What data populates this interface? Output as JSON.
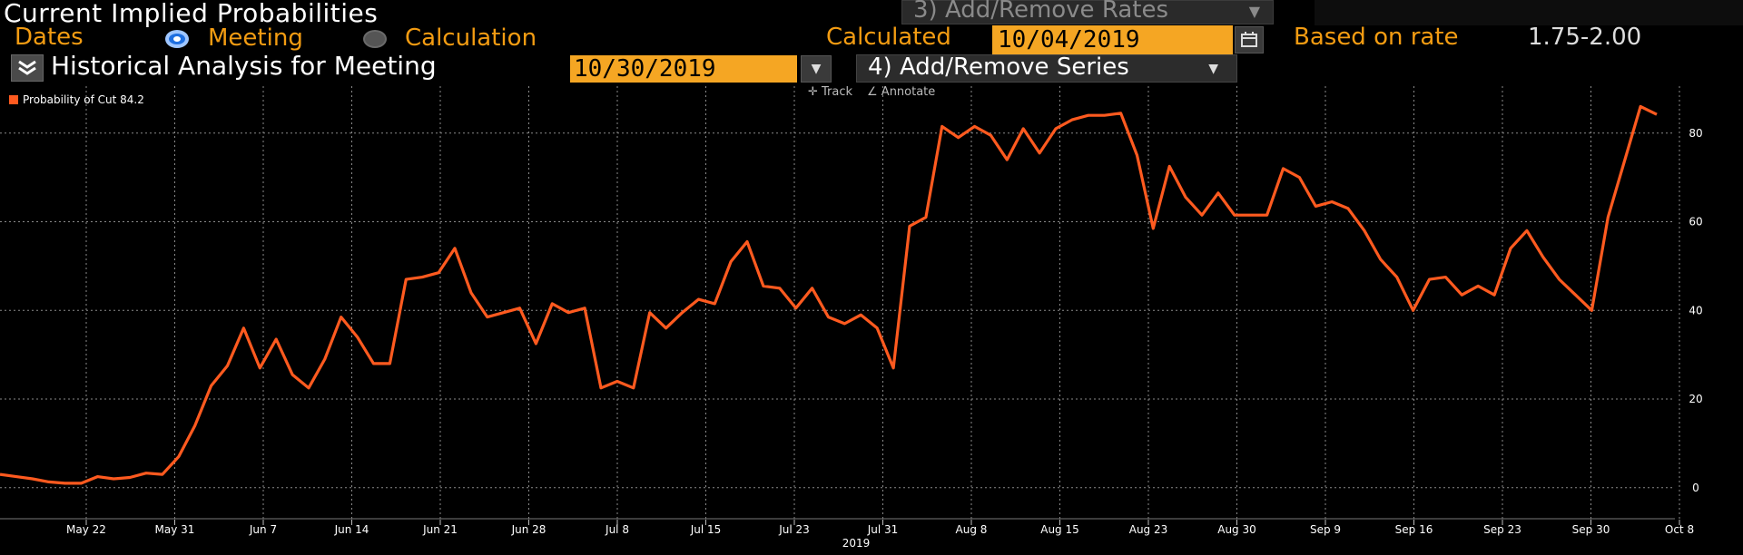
{
  "header": {
    "title": "Current Implied Probabilities",
    "rates_button": "3) Add/Remove Rates",
    "dates_label": "Dates",
    "meeting_label": "Meeting",
    "calculation_label": "Calculation",
    "calculated_label": "Calculated",
    "calculated_date": "10/04/2019",
    "based_on_label": "Based on rate",
    "rate_value": "1.75-2.00"
  },
  "subheader": {
    "historical_label": "Historical Analysis for Meeting",
    "meeting_date": "10/30/2019",
    "series_button": "4) Add/Remove Series"
  },
  "tools": {
    "track": "Track",
    "annotate": "Annotate"
  },
  "legend": {
    "label": "Probability of Cut 84.2"
  },
  "colors": {
    "accent_orange": "#f39c12",
    "line": "#ff5a1f",
    "background": "#000000"
  },
  "chart_data": {
    "type": "line",
    "series": [
      {
        "name": "Probability of Cut",
        "values": [
          3,
          2.5,
          2,
          1.3,
          1,
          1,
          2.5,
          2,
          2.3,
          3.3,
          3,
          7,
          14,
          23,
          27.5,
          36,
          27,
          33.5,
          25.5,
          22.5,
          29,
          38.5,
          34,
          28,
          28,
          47,
          47.5,
          48.5,
          54,
          44,
          38.5,
          39.5,
          40.5,
          32.5,
          41.5,
          39.5,
          40.5,
          22.5,
          24,
          22.5,
          39.5,
          36,
          39.5,
          42.5,
          41.5,
          51,
          55.5,
          45.5,
          45,
          40.5,
          45,
          38.5,
          37,
          39,
          36,
          27,
          59,
          61,
          81.5,
          79,
          81.5,
          79.5,
          74,
          81,
          75.5,
          81,
          83,
          84,
          84,
          84.5,
          75,
          58.5,
          72.5,
          65.5,
          61.5,
          66.5,
          61.5,
          61.5,
          61.5,
          72,
          70,
          63.5,
          64.5,
          63,
          58,
          51.5,
          47.5,
          40,
          47,
          47.5,
          43.5,
          45.5,
          43.5,
          54,
          58,
          52,
          47,
          43.5,
          40,
          61,
          73.5,
          86,
          84.2
        ]
      }
    ],
    "x_tick_labels": [
      "May 22",
      "May 31",
      "Jun 7",
      "Jun 14",
      "Jun 21",
      "Jun 28",
      "Jul 8",
      "Jul 15",
      "Jul 23",
      "Jul 31",
      "Aug 8",
      "Aug 15",
      "Aug 23",
      "Aug 30",
      "Sep 9",
      "Sep 16",
      "Sep 23",
      "Sep 30",
      "Oct 8"
    ],
    "year_label": "2019",
    "y_ticks": [
      0,
      20,
      40,
      60,
      80
    ],
    "ylim": [
      -7,
      91
    ],
    "grid": true,
    "legend_position": "top-left"
  }
}
